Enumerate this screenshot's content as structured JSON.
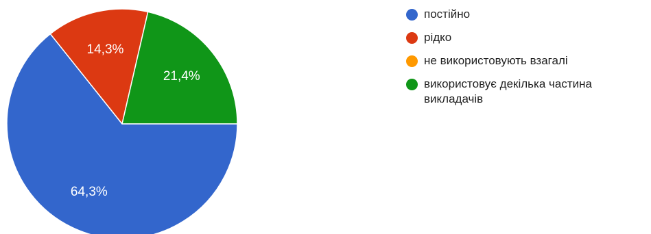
{
  "chart_data": {
    "type": "pie",
    "categories": [
      "постійно",
      "рідко",
      "не використовують взагалі",
      "використовує декілька частина викладачів"
    ],
    "values": [
      64.3,
      14.3,
      0,
      21.4
    ],
    "labels": [
      "64,3%",
      "14,3%",
      "",
      "21,4%"
    ],
    "colors": [
      "#3366cc",
      "#dc3912",
      "#ff9900",
      "#109618"
    ],
    "legend_position": "right"
  }
}
